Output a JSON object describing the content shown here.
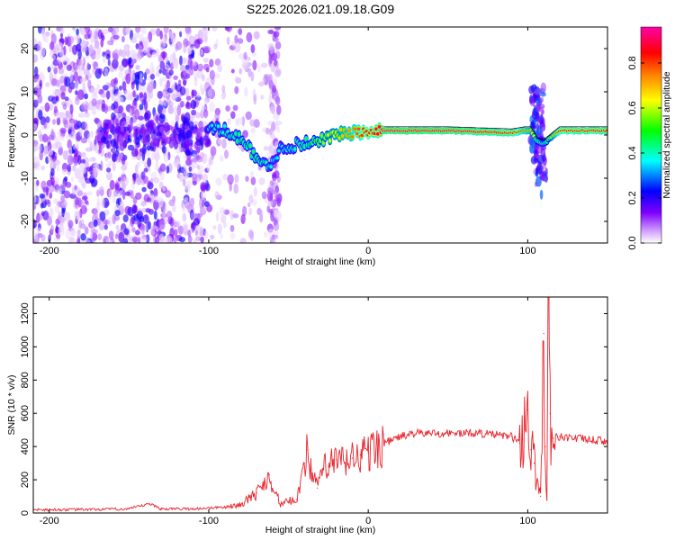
{
  "figure_title": "S225.2026.021.09.18.G09",
  "chart_data": [
    {
      "type": "heatmap",
      "name": "spectrogram",
      "xlabel": "Height of straight line (km)",
      "ylabel": "Frequency (Hz)",
      "xlim": [
        -210,
        150
      ],
      "ylim": [
        -25,
        25
      ],
      "xticks": [
        -200,
        -100,
        0,
        100
      ],
      "yticks": [
        -20,
        -10,
        0,
        10,
        20
      ],
      "colorbar": {
        "label": "Normalized spectral amplitude",
        "range": [
          0,
          0.96
        ],
        "ticks": [
          0.0,
          0.2,
          0.4,
          0.6,
          0.8
        ],
        "tick_labels": [
          "0.0",
          "0.2",
          "0.4",
          "0.6",
          "0.8"
        ],
        "colors": [
          "#ffffff",
          "#cc99ff",
          "#7f00ff",
          "#0000ff",
          "#00ffff",
          "#00ff00",
          "#ffff00",
          "#ff7f00",
          "#ff0000",
          "#ff00aa"
        ]
      },
      "ridge": {
        "description": "dominant frequency track (Hz) vs height (km)",
        "x": [
          -100,
          -90,
          -80,
          -70,
          -62,
          -55,
          -48,
          -40,
          -30,
          -20,
          -10,
          0,
          10,
          50,
          90,
          98,
          102,
          106,
          110,
          120,
          150
        ],
        "y": [
          1.5,
          1.0,
          -1.0,
          -5.0,
          -8.0,
          -3.0,
          -2.5,
          -2.0,
          -1.0,
          0.0,
          0.5,
          0.5,
          1.0,
          1.0,
          0.5,
          1.0,
          1.0,
          -1.5,
          -2.0,
          1.0,
          1.0
        ],
        "amplitude": [
          0.35,
          0.4,
          0.45,
          0.45,
          0.4,
          0.35,
          0.4,
          0.45,
          0.55,
          0.65,
          0.75,
          0.85,
          0.92,
          0.92,
          0.88,
          0.75,
          0.7,
          0.5,
          0.4,
          0.85,
          0.88
        ]
      }
    },
    {
      "type": "line",
      "name": "snr",
      "xlabel": "Height of straight line (km)",
      "ylabel": "SNR (10 * v/v)",
      "xlim": [
        -210,
        150
      ],
      "ylim": [
        0,
        1300
      ],
      "xticks": [
        -200,
        -100,
        0,
        100
      ],
      "yticks": [
        0,
        200,
        400,
        600,
        800,
        1000,
        1200
      ],
      "color": "#e8232a",
      "series": [
        {
          "name": "SNR",
          "x": [
            -210,
            -180,
            -150,
            -137,
            -130,
            -110,
            -90,
            -80,
            -70,
            -65,
            -62,
            -58,
            -55,
            -50,
            -45,
            -40,
            -38,
            -35,
            -32,
            -30,
            -25,
            -20,
            -15,
            -10,
            -5,
            0,
            10,
            20,
            30,
            50,
            70,
            90,
            95,
            100,
            102,
            104,
            106,
            108,
            110,
            111,
            112,
            113,
            114,
            116,
            120,
            130,
            150
          ],
          "y": [
            20,
            20,
            25,
            55,
            25,
            25,
            35,
            50,
            120,
            180,
            230,
            120,
            50,
            70,
            80,
            300,
            380,
            220,
            150,
            250,
            280,
            320,
            300,
            330,
            350,
            360,
            420,
            460,
            480,
            480,
            480,
            460,
            420,
            620,
            380,
            300,
            200,
            100,
            1080,
            400,
            80,
            1300,
            600,
            450,
            460,
            450,
            430
          ]
        }
      ]
    }
  ]
}
